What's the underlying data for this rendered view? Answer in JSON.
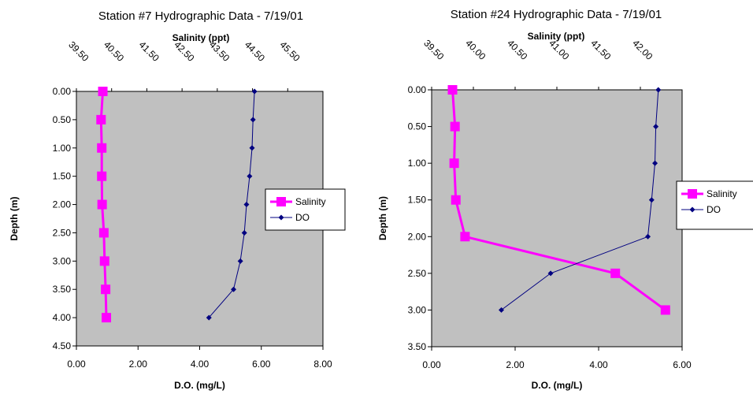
{
  "chart_data": [
    {
      "type": "line",
      "title": "Station #7 Hydrographic Data - 7/19/01",
      "top_axis_label": "Salinity (ppt)",
      "bottom_axis_label": "D.O. (mg/L)",
      "ylabel": "Depth (m)",
      "top_axis_ticks": [
        "39.50",
        "40.50",
        "41.50",
        "42.50",
        "43.50",
        "44.50",
        "45.50"
      ],
      "bottom_axis_ticks": [
        "0.00",
        "2.00",
        "4.00",
        "6.00",
        "8.00"
      ],
      "y_ticks": [
        "0.00",
        "0.50",
        "1.00",
        "1.50",
        "2.00",
        "2.50",
        "3.00",
        "3.50",
        "4.00",
        "4.50"
      ],
      "xlim_bottom": [
        0,
        8
      ],
      "xlim_top": [
        39.5,
        46.5
      ],
      "ylim": [
        0,
        4.5
      ],
      "y_inverted": true,
      "plot_background": "#c0c0c0",
      "legend_position": "right",
      "series": [
        {
          "name": "Salinity",
          "axis": "top",
          "color": "#ff00ff",
          "marker": "square",
          "points": [
            {
              "x": 40.25,
              "y": 0.0
            },
            {
              "x": 40.2,
              "y": 0.5
            },
            {
              "x": 40.22,
              "y": 1.0
            },
            {
              "x": 40.22,
              "y": 1.5
            },
            {
              "x": 40.23,
              "y": 2.0
            },
            {
              "x": 40.28,
              "y": 2.5
            },
            {
              "x": 40.3,
              "y": 3.0
            },
            {
              "x": 40.33,
              "y": 3.5
            },
            {
              "x": 40.35,
              "y": 4.0
            }
          ]
        },
        {
          "name": "DO",
          "axis": "bottom",
          "color": "#000080",
          "marker": "diamond",
          "points": [
            {
              "x": 5.78,
              "y": 0.0
            },
            {
              "x": 5.73,
              "y": 0.5
            },
            {
              "x": 5.7,
              "y": 1.0
            },
            {
              "x": 5.62,
              "y": 1.5
            },
            {
              "x": 5.52,
              "y": 2.0
            },
            {
              "x": 5.45,
              "y": 2.5
            },
            {
              "x": 5.32,
              "y": 3.0
            },
            {
              "x": 5.1,
              "y": 3.5
            },
            {
              "x": 4.3,
              "y": 4.0
            }
          ]
        }
      ]
    },
    {
      "type": "line",
      "title": "Station #24 Hydrographic Data - 7/19/01",
      "top_axis_label": "Salinity (ppt)",
      "bottom_axis_label": "D.O. (mg/L)",
      "ylabel": "Depth (m)",
      "top_axis_ticks": [
        "39.50",
        "40.00",
        "40.50",
        "41.00",
        "41.50",
        "42.00"
      ],
      "bottom_axis_ticks": [
        "0.00",
        "2.00",
        "4.00",
        "6.00"
      ],
      "y_ticks": [
        "0.00",
        "0.50",
        "1.00",
        "1.50",
        "2.00",
        "2.50",
        "3.00",
        "3.50"
      ],
      "xlim_bottom": [
        0,
        6
      ],
      "xlim_top": [
        39.5,
        42.5
      ],
      "ylim": [
        0,
        3.5
      ],
      "y_inverted": true,
      "plot_background": "#c0c0c0",
      "legend_position": "right",
      "series": [
        {
          "name": "Salinity",
          "axis": "top",
          "color": "#ff00ff",
          "marker": "square",
          "points": [
            {
              "x": 39.75,
              "y": 0.0
            },
            {
              "x": 39.78,
              "y": 0.5
            },
            {
              "x": 39.77,
              "y": 1.0
            },
            {
              "x": 39.79,
              "y": 1.5
            },
            {
              "x": 39.9,
              "y": 2.0
            },
            {
              "x": 41.7,
              "y": 2.5
            },
            {
              "x": 42.3,
              "y": 3.0
            }
          ]
        },
        {
          "name": "DO",
          "axis": "bottom",
          "color": "#000080",
          "marker": "diamond",
          "points": [
            {
              "x": 5.43,
              "y": 0.0
            },
            {
              "x": 5.37,
              "y": 0.5
            },
            {
              "x": 5.35,
              "y": 1.0
            },
            {
              "x": 5.27,
              "y": 1.5
            },
            {
              "x": 5.18,
              "y": 2.0
            },
            {
              "x": 2.85,
              "y": 2.5
            },
            {
              "x": 1.67,
              "y": 3.0
            }
          ]
        }
      ]
    }
  ]
}
